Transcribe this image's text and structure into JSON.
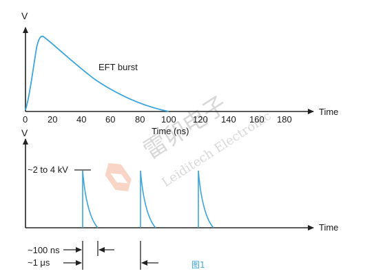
{
  "top_plot": {
    "y_axis_label": "V",
    "x_axis_label": "Time",
    "x_tick_labels": [
      "0",
      "20",
      "40",
      "60",
      "80",
      "100",
      "120",
      "140",
      "160",
      "180"
    ],
    "x_unit_label": "Time (ns)",
    "curve_label": "EFT burst"
  },
  "bottom_plot": {
    "y_axis_label": "V",
    "x_axis_label": "Time",
    "amplitude_label": "~2 to 4 kV"
  },
  "annotations": {
    "pulse_width_label": "~100 ns",
    "period_label": "~1 μs"
  },
  "watermark": {
    "chinese": "雷卯电子",
    "english": "Leiditech Electronic"
  },
  "caption": "图1",
  "colors": {
    "curve": "#3aa6dd",
    "axis": "#222222",
    "caption": "#3aa6dd",
    "logo": "#e8643c"
  }
}
